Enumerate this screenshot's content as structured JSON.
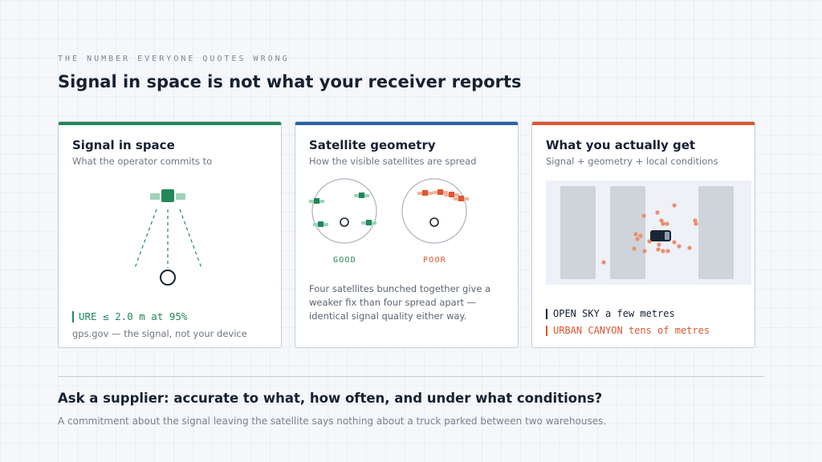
{
  "header": {
    "eyebrow": "THE NUMBER EVERYONE QUOTES WRONG",
    "title": "Signal in space is not what your receiver reports"
  },
  "cards": [
    {
      "title": "Signal in space",
      "subtitle": "What the operator commits to",
      "accent": "#23875a",
      "metric": "URE ≤ 2.0 m at 95%",
      "source": "gps.gov — the signal, not your device"
    },
    {
      "title": "Satellite geometry",
      "subtitle": "How the visible satellites are spread",
      "accent": "#2a62a8",
      "good_label": "GOOD",
      "poor_label": "POOR",
      "good_color": "#23875a",
      "poor_color": "#e0562f",
      "description": "Four satellites bunched together give a weaker fix than four spread apart — identical signal quality either way."
    },
    {
      "title": "What you actually get",
      "subtitle": "Signal + geometry + local conditions",
      "accent": "#e0562f",
      "open_sky_label": "OPEN SKY",
      "open_sky_value": "a few metres",
      "urban_label": "URBAN CANYON",
      "urban_value": "tens of metres"
    }
  ],
  "footer": {
    "question": "Ask a supplier: accurate to what, how often, and under what conditions?",
    "note": "A commitment about the signal leaving the satellite says nothing about a truck parked between two warehouses."
  },
  "icons": {
    "satellite": "satellite-icon",
    "receiver": "receiver-icon",
    "truck": "truck-icon"
  }
}
